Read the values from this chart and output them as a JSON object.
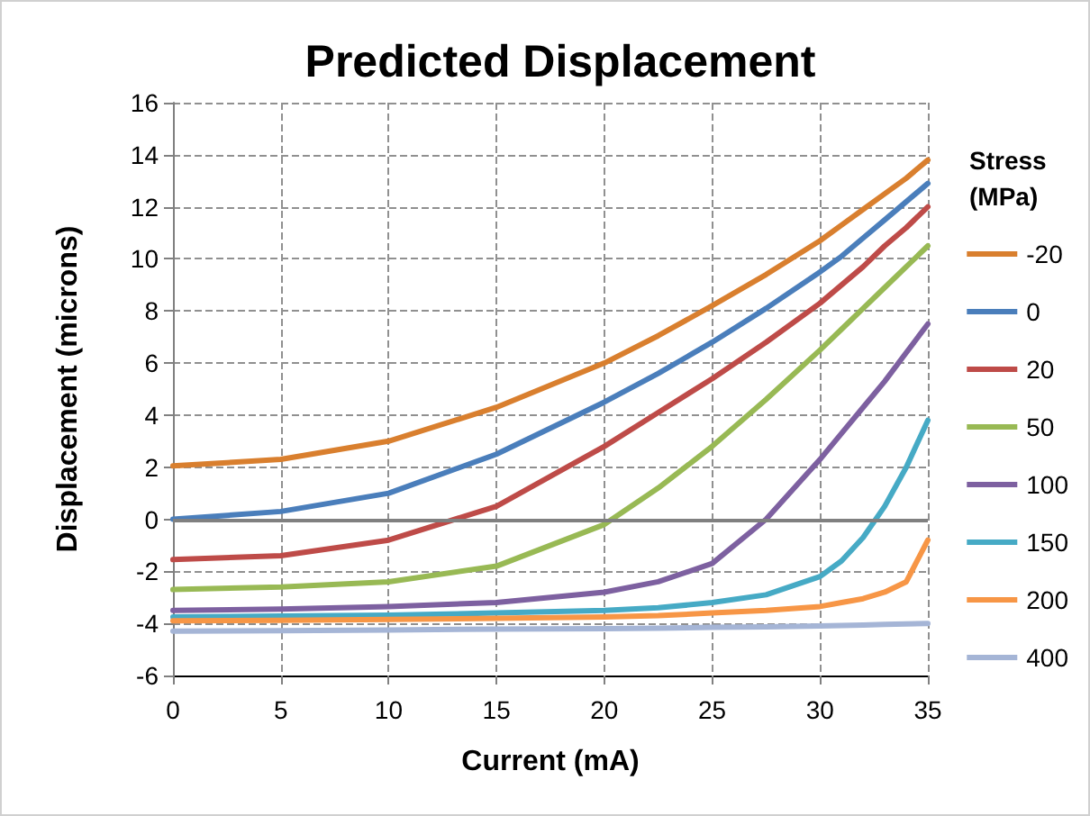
{
  "chart_data": {
    "type": "line",
    "title": "Predicted Displacement",
    "xlabel": "Current (mA)",
    "ylabel": "Displacement (microns)",
    "legend_title": "Stress (MPa)",
    "x": [
      0,
      5,
      10,
      15,
      20,
      22.5,
      25,
      27.5,
      30,
      31,
      32,
      33,
      34,
      35
    ],
    "series": [
      {
        "name": "-20",
        "color": "#d97f2e",
        "values": [
          2.05,
          2.3,
          3.0,
          4.3,
          6.0,
          7.05,
          8.2,
          9.4,
          10.7,
          11.3,
          11.9,
          12.5,
          13.1,
          13.8
        ]
      },
      {
        "name": "0",
        "color": "#4a7ebb",
        "values": [
          0,
          0.3,
          1.0,
          2.5,
          4.5,
          5.6,
          6.8,
          8.1,
          9.5,
          10.1,
          10.8,
          11.5,
          12.2,
          12.9
        ]
      },
      {
        "name": "20",
        "color": "#be4b48",
        "values": [
          -1.55,
          -1.4,
          -0.8,
          0.5,
          2.8,
          4.1,
          5.4,
          6.8,
          8.3,
          9.0,
          9.7,
          10.5,
          11.2,
          12.0
        ]
      },
      {
        "name": "50",
        "color": "#98b954",
        "values": [
          -2.7,
          -2.6,
          -2.4,
          -1.8,
          -0.2,
          1.2,
          2.8,
          4.6,
          6.5,
          7.3,
          8.1,
          8.9,
          9.7,
          10.5
        ]
      },
      {
        "name": "100",
        "color": "#7d60a0",
        "values": [
          -3.5,
          -3.45,
          -3.35,
          -3.2,
          -2.8,
          -2.4,
          -1.7,
          0,
          2.3,
          3.3,
          4.3,
          5.3,
          6.4,
          7.5
        ]
      },
      {
        "name": "150",
        "color": "#46aac5",
        "values": [
          -3.75,
          -3.72,
          -3.68,
          -3.6,
          -3.5,
          -3.4,
          -3.2,
          -2.9,
          -2.2,
          -1.6,
          -0.7,
          0.5,
          2.0,
          3.8
        ]
      },
      {
        "name": "200",
        "color": "#f79646",
        "values": [
          -3.9,
          -3.88,
          -3.85,
          -3.8,
          -3.75,
          -3.7,
          -3.6,
          -3.5,
          -3.35,
          -3.2,
          -3.05,
          -2.8,
          -2.4,
          -0.8
        ]
      },
      {
        "name": "400",
        "color": "#a5b5d6",
        "values": [
          -4.3,
          -4.28,
          -4.25,
          -4.22,
          -4.2,
          -4.18,
          -4.15,
          -4.13,
          -4.1,
          -4.08,
          -4.06,
          -4.04,
          -4.02,
          -4.0
        ]
      }
    ],
    "xlim": [
      0,
      35
    ],
    "xticks": [
      0,
      5,
      10,
      15,
      20,
      25,
      30,
      35
    ],
    "ylim": [
      -6,
      16
    ],
    "yticks": [
      -6,
      -4,
      -2,
      0,
      2,
      4,
      6,
      8,
      10,
      12,
      14,
      16
    ],
    "ref_lines": [
      {
        "axis": "y",
        "value": 0,
        "color": "#808080",
        "line_style": "solid"
      }
    ],
    "grid": true,
    "legend": "right",
    "marker": "none",
    "line_style": "solid"
  }
}
